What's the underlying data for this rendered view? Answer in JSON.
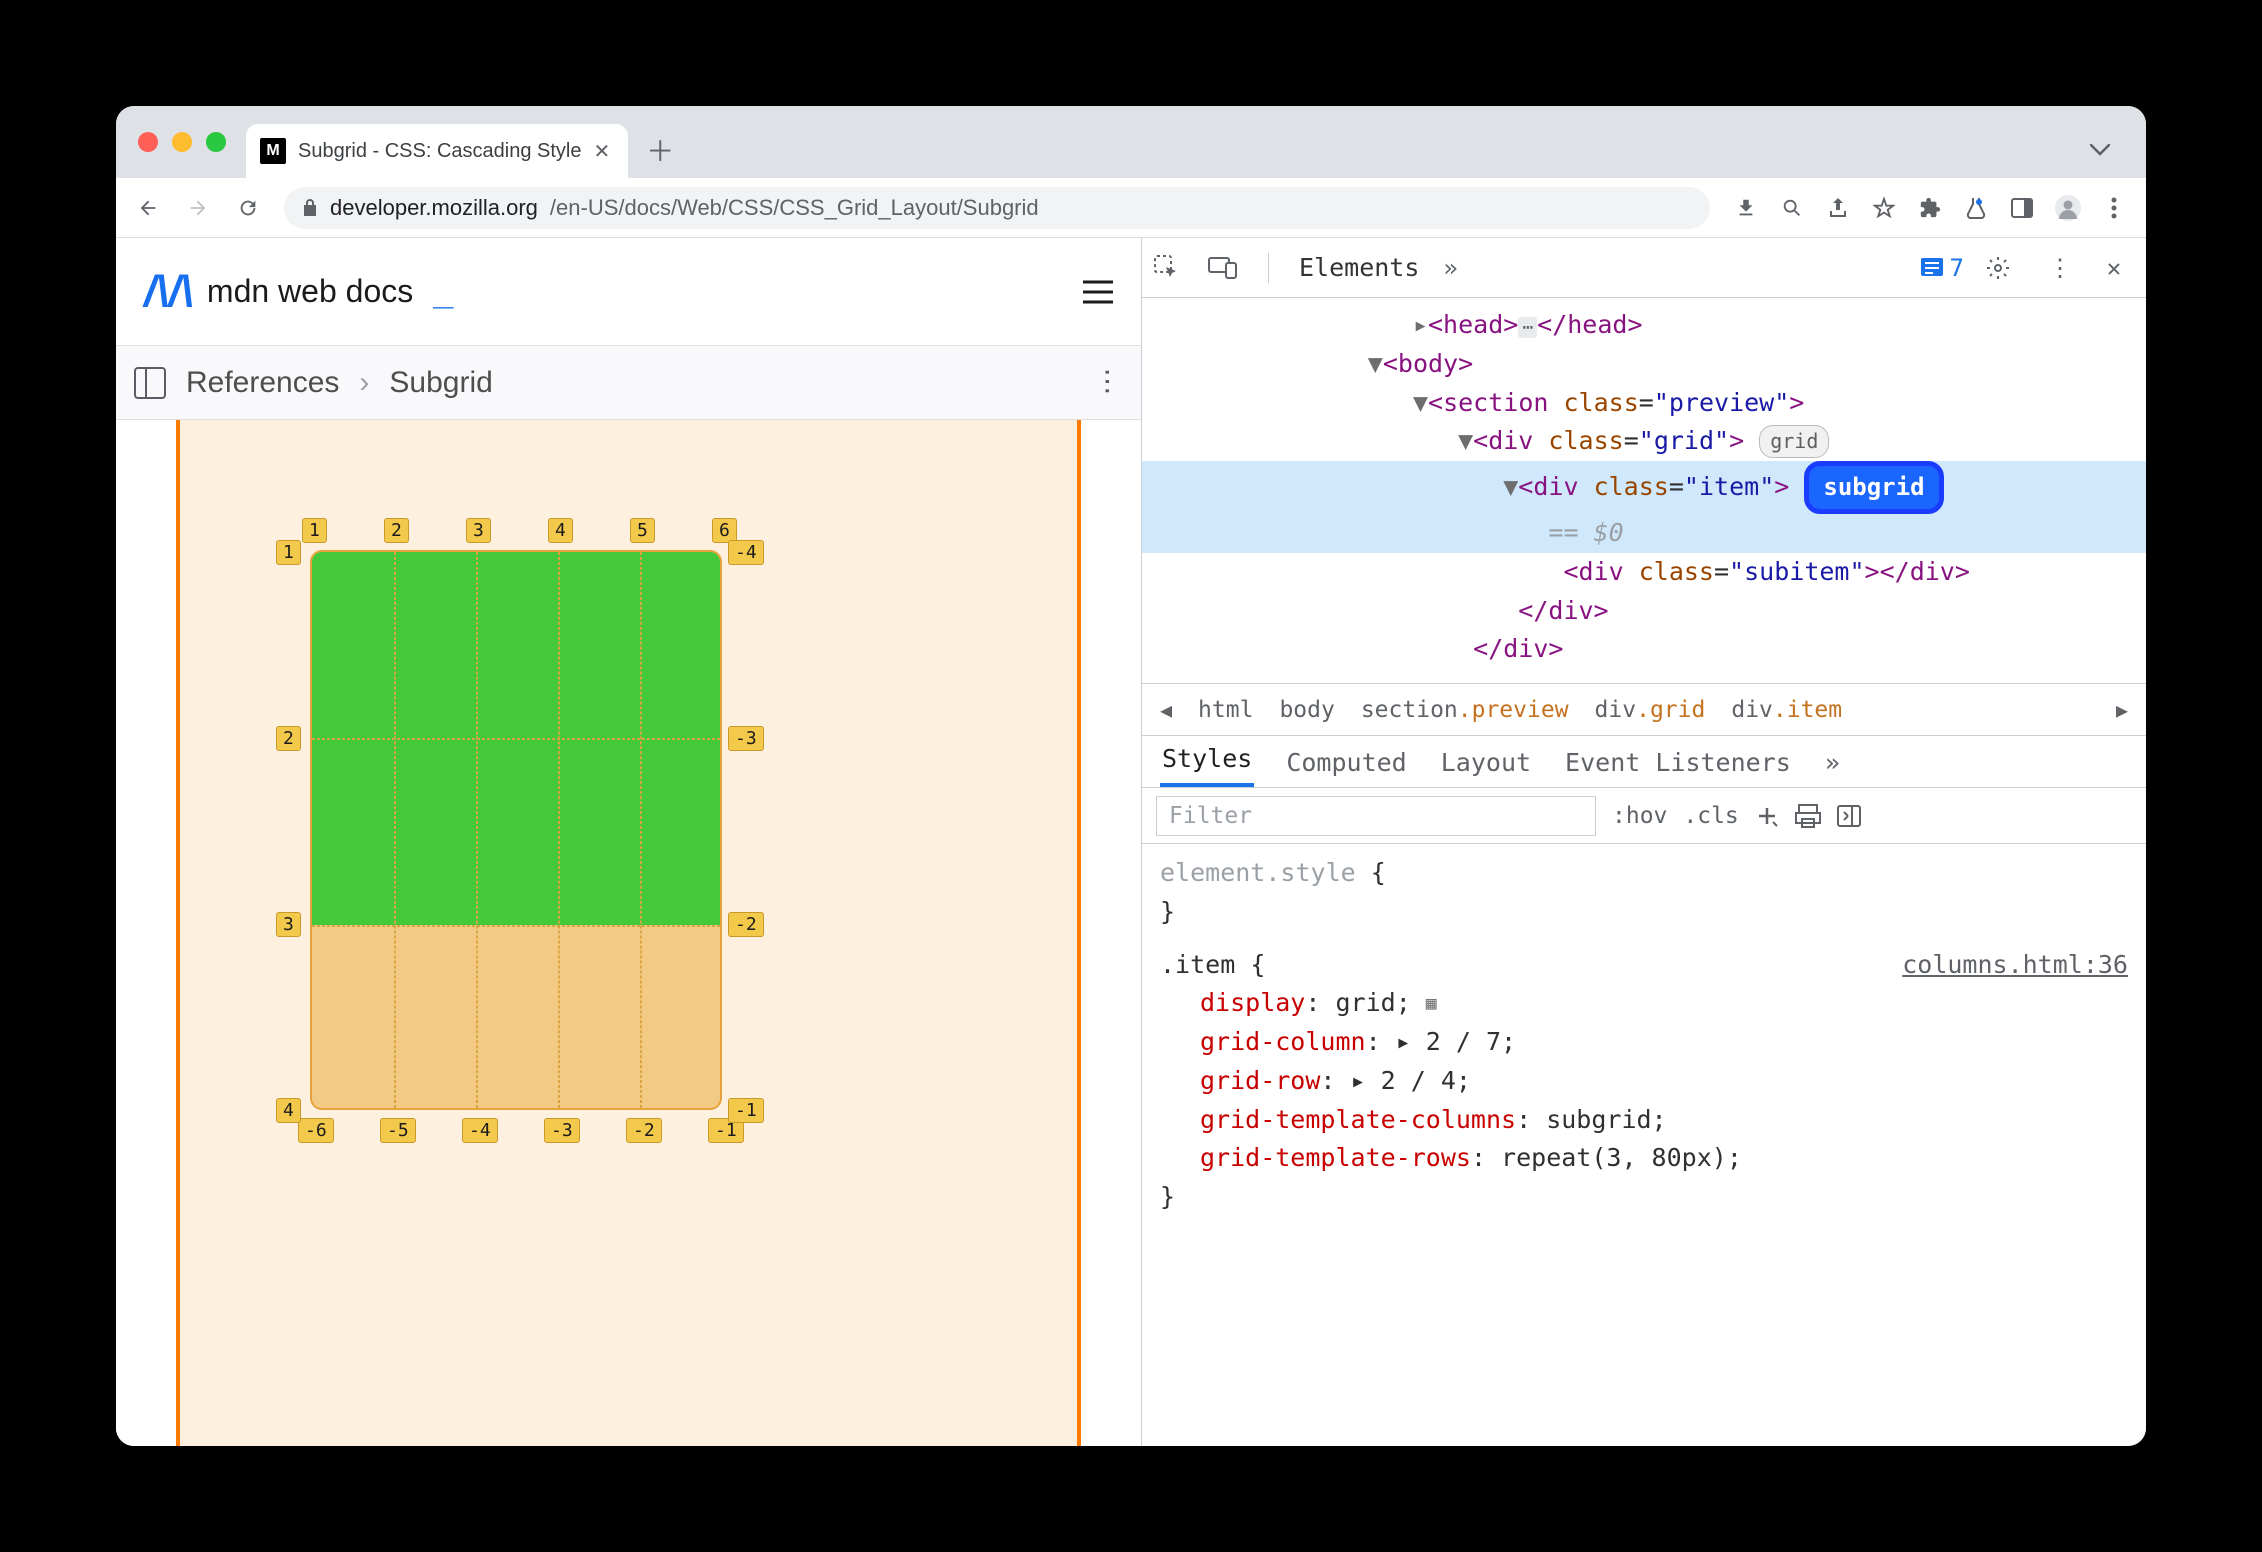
{
  "window": {
    "traffic_colors": [
      "#ff5f57",
      "#febc2e",
      "#28c840"
    ],
    "tab_title": "Subgrid - CSS: Cascading Style",
    "url_host": "developer.mozilla.org",
    "url_path": "/en-US/docs/Web/CSS/CSS_Grid_Layout/Subgrid"
  },
  "mdn": {
    "logo_text": "mdn web docs",
    "crumb1": "References",
    "crumb2": "Subgrid"
  },
  "grid_demo": {
    "bg_color": "#fdf0df",
    "border_color": "#ff7a00",
    "item_color": "#f3ca84",
    "subitem_color": "#44c93a",
    "label_bg": "#f3c94b",
    "label_border": "#c99a2a",
    "top_labels": [
      "1",
      "2",
      "3",
      "4",
      "5",
      "6"
    ],
    "left_labels": [
      "1",
      "2",
      "3",
      "4"
    ],
    "right_labels": [
      "-4",
      "-3",
      "-2",
      "-1"
    ],
    "bottom_labels": [
      "-6",
      "-5",
      "-4",
      "-3",
      "-2",
      "-1"
    ]
  },
  "devtools": {
    "panel_tab": "Elements",
    "issue_count": "7",
    "dom": {
      "head_open": "<head>",
      "head_close": "</head>",
      "body_open": "<body>",
      "section": {
        "tag": "section",
        "class": "preview"
      },
      "grid": {
        "tag": "div",
        "class": "grid",
        "badge": "grid"
      },
      "item": {
        "tag": "div",
        "class": "item",
        "badge": "subgrid"
      },
      "eq": "== $0",
      "subitem": {
        "tag": "div",
        "class": "subitem"
      },
      "div_close": "</div>",
      "div_close2": "</div>"
    },
    "breadcrumbs": [
      "html",
      "body",
      "section.preview",
      "div.grid",
      "div.item"
    ],
    "style_tabs": [
      "Styles",
      "Computed",
      "Layout",
      "Event Listeners"
    ],
    "filter_placeholder": "Filter",
    "hov": ":hov",
    "cls": ".cls",
    "element_style": "element.style",
    "rule": {
      "selector": ".item",
      "source": "columns.html:36",
      "props": [
        {
          "p": "display",
          "v": "grid",
          "icon": true
        },
        {
          "p": "grid-column",
          "v": "▸ 2 / 7"
        },
        {
          "p": "grid-row",
          "v": "▸ 2 / 4"
        },
        {
          "p": "grid-template-columns",
          "v": "subgrid"
        },
        {
          "p": "grid-template-rows",
          "v": "repeat(3, 80px)"
        }
      ]
    }
  }
}
